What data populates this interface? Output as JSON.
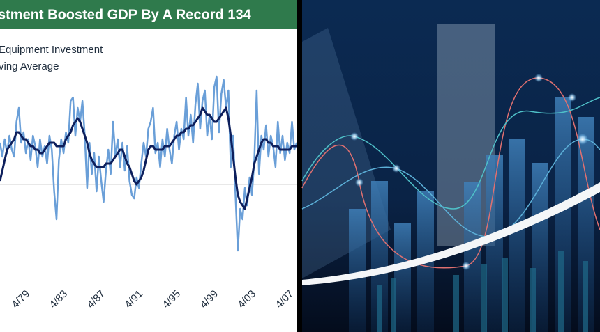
{
  "chart_data": {
    "type": "line",
    "title": "stment Boosted GDP By A Record 134",
    "categories": [
      null,
      null,
      null,
      null,
      null,
      null,
      null,
      null,
      null,
      null,
      null,
      null,
      "4/79",
      null,
      null,
      null,
      null,
      null,
      null,
      null,
      null,
      null,
      null,
      null,
      null,
      null,
      null,
      null,
      "4/83",
      null,
      null,
      null,
      null,
      null,
      null,
      null,
      null,
      null,
      null,
      null,
      null,
      null,
      null,
      null,
      "4/87",
      null,
      null,
      null,
      null,
      null,
      null,
      null,
      null,
      null,
      null,
      null,
      null,
      null,
      null,
      null,
      "4/91",
      null,
      null,
      null,
      null,
      null,
      null,
      null,
      null,
      null,
      null,
      null,
      null,
      null,
      null,
      null,
      "4/95",
      null,
      null,
      null,
      null,
      null,
      null,
      null,
      null,
      null,
      null,
      null,
      null,
      null,
      null,
      null,
      "4/99",
      null,
      null,
      null,
      null,
      null,
      null,
      null,
      null,
      null,
      null,
      null,
      null,
      null,
      null,
      null,
      "4/03",
      null,
      null,
      null,
      null,
      null,
      null,
      null,
      null,
      null,
      null,
      null,
      null,
      null,
      null,
      null,
      "4/07",
      null,
      null
    ],
    "series": [
      {
        "name": "Equipment Investment",
        "color": "#6a9fd8",
        "values": [
          12,
          8,
          13,
          9,
          14,
          10,
          8,
          18,
          22,
          12,
          15,
          9,
          13,
          7,
          14,
          11,
          5,
          13,
          8,
          11,
          6,
          14,
          10,
          -2,
          -10,
          7,
          13,
          9,
          15,
          12,
          24,
          25,
          14,
          22,
          18,
          24,
          14,
          -1,
          12,
          3,
          9,
          -2,
          8,
          1,
          -5,
          4,
          10,
          3,
          18,
          8,
          13,
          5,
          12,
          4,
          11,
          1,
          -3,
          -4,
          2,
          -1,
          6,
          12,
          8,
          16,
          18,
          22,
          9,
          12,
          5,
          13,
          8,
          16,
          10,
          6,
          14,
          18,
          10,
          16,
          13,
          25,
          14,
          20,
          12,
          23,
          29,
          16,
          24,
          27,
          14,
          20,
          13,
          28,
          31,
          15,
          26,
          30,
          22,
          27,
          5,
          14,
          -3,
          -19,
          -7,
          -10,
          -1,
          -6,
          2,
          -3,
          7,
          27,
          3,
          14,
          10,
          17,
          8,
          14,
          11,
          5,
          18,
          9,
          14,
          7,
          12,
          9,
          18,
          10,
          12
        ]
      },
      {
        "name": "ving Average",
        "color": "#0d1f5c",
        "values": [
          1,
          4,
          7,
          10,
          11,
          12,
          13,
          15,
          15,
          14,
          13,
          13,
          12,
          11,
          11,
          10,
          10,
          9,
          9,
          10,
          11,
          12,
          12,
          12,
          11,
          11,
          11,
          11,
          13,
          14,
          15,
          17,
          18,
          19,
          18,
          16,
          14,
          12,
          9,
          7,
          6,
          5,
          5,
          5,
          5,
          6,
          6,
          6,
          7,
          8,
          9,
          10,
          10,
          8,
          6,
          5,
          3,
          1,
          0,
          1,
          2,
          4,
          7,
          10,
          11,
          11,
          10,
          10,
          10,
          10,
          11,
          11,
          11,
          12,
          13,
          14,
          14,
          15,
          15,
          16,
          16,
          17,
          17,
          18,
          19,
          20,
          22,
          21,
          20,
          20,
          19,
          18,
          18,
          19,
          20,
          21,
          22,
          19,
          14,
          8,
          2,
          -3,
          -5,
          -6,
          -7,
          -4,
          -1,
          2,
          6,
          8,
          10,
          12,
          13,
          13,
          12,
          12,
          11,
          11,
          11,
          10,
          10,
          10,
          10,
          10,
          11,
          11,
          11
        ]
      }
    ],
    "ylim": [
      -21,
      31
    ]
  }
}
